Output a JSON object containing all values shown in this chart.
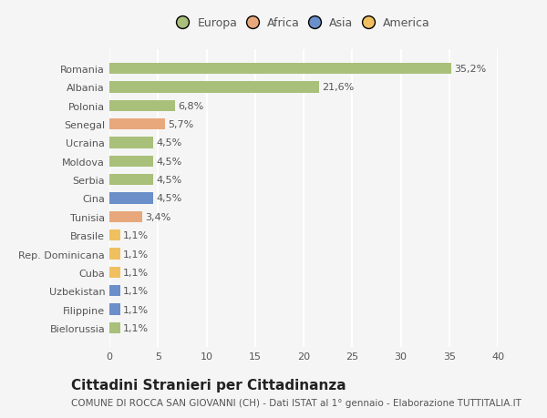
{
  "categories": [
    "Romania",
    "Albania",
    "Polonia",
    "Senegal",
    "Ucraina",
    "Moldova",
    "Serbia",
    "Cina",
    "Tunisia",
    "Brasile",
    "Rep. Dominicana",
    "Cuba",
    "Uzbekistan",
    "Filippine",
    "Bielorussia"
  ],
  "values": [
    35.2,
    21.6,
    6.8,
    5.7,
    4.5,
    4.5,
    4.5,
    4.5,
    3.4,
    1.1,
    1.1,
    1.1,
    1.1,
    1.1,
    1.1
  ],
  "labels": [
    "35,2%",
    "21,6%",
    "6,8%",
    "5,7%",
    "4,5%",
    "4,5%",
    "4,5%",
    "4,5%",
    "3,4%",
    "1,1%",
    "1,1%",
    "1,1%",
    "1,1%",
    "1,1%",
    "1,1%"
  ],
  "colors": [
    "#a8c07a",
    "#a8c07a",
    "#a8c07a",
    "#e8a87c",
    "#a8c07a",
    "#a8c07a",
    "#a8c07a",
    "#6b8fc9",
    "#e8a87c",
    "#f0c060",
    "#f0c060",
    "#f0c060",
    "#6b8fc9",
    "#6b8fc9",
    "#a8c07a"
  ],
  "legend": [
    {
      "label": "Europa",
      "color": "#a8c07a"
    },
    {
      "label": "Africa",
      "color": "#e8a87c"
    },
    {
      "label": "Asia",
      "color": "#6b8fc9"
    },
    {
      "label": "America",
      "color": "#f0c060"
    }
  ],
  "xlim": [
    0,
    40
  ],
  "xticks": [
    0,
    5,
    10,
    15,
    20,
    25,
    30,
    35,
    40
  ],
  "title": "Cittadini Stranieri per Cittadinanza",
  "subtitle": "COMUNE DI ROCCA SAN GIOVANNI (CH) - Dati ISTAT al 1° gennaio - Elaborazione TUTTITALIA.IT",
  "background_color": "#f5f5f5",
  "grid_color": "#ffffff",
  "bar_height": 0.6,
  "title_fontsize": 11,
  "subtitle_fontsize": 7.5,
  "label_fontsize": 8,
  "tick_fontsize": 8,
  "legend_fontsize": 9
}
